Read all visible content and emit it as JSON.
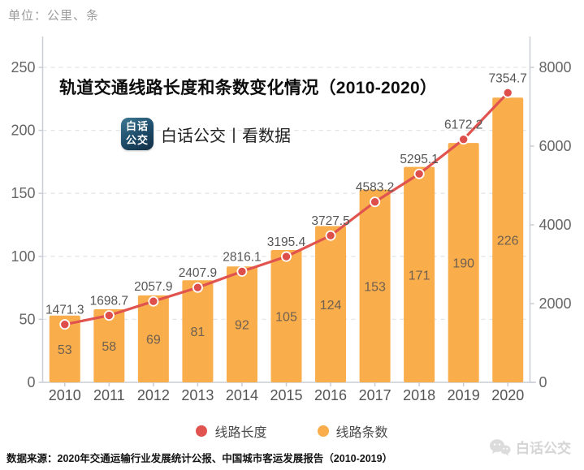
{
  "header": {
    "unit_label": "单位：公里、条",
    "logo_badge_line1": "白话",
    "logo_badge_line2": "公交",
    "logo_caption": "白话公交丨看数据"
  },
  "chart_data": {
    "type": "bar+line",
    "title": "轨道交通线路长度和条数变化情况（2010-2020）",
    "categories": [
      "2010",
      "2011",
      "2012",
      "2013",
      "2014",
      "2015",
      "2016",
      "2017",
      "2018",
      "2019",
      "2020"
    ],
    "series": [
      {
        "name": "线路长度",
        "kind": "line",
        "axis": "right",
        "color": "#E0534F",
        "marker_fill": "#DE4E4A",
        "label_color": "#565656",
        "values": [
          1471.3,
          1698.7,
          2057.9,
          2407.9,
          2816.1,
          3195.4,
          3727.5,
          4583.2,
          5295.1,
          6172.2,
          7354.7
        ]
      },
      {
        "name": "线路条数",
        "kind": "bar",
        "axis": "left",
        "color": "#F9AD4B",
        "label_color": "#6F6050",
        "values": [
          53,
          58,
          69,
          81,
          92,
          105,
          124,
          153,
          171,
          190,
          226
        ]
      }
    ],
    "left_axis": {
      "min": 0,
      "max": 250,
      "ticks": [
        0,
        50,
        100,
        150,
        200,
        250
      ]
    },
    "right_axis": {
      "min": 0,
      "max": 8000,
      "ticks": [
        0,
        2000,
        4000,
        6000,
        8000
      ]
    },
    "grid": "dashed-horizontal",
    "legend_position": "bottom-center",
    "axis_text_color": "#666666",
    "axis_line_color": "#C9CDD4",
    "grid_line_color": "#E2E4E8"
  },
  "footer": {
    "source": "数据来源：2020年交通运输行业发展统计公报、中国城市客运发展报告（2010-2019）",
    "watermark": "白话公交"
  }
}
